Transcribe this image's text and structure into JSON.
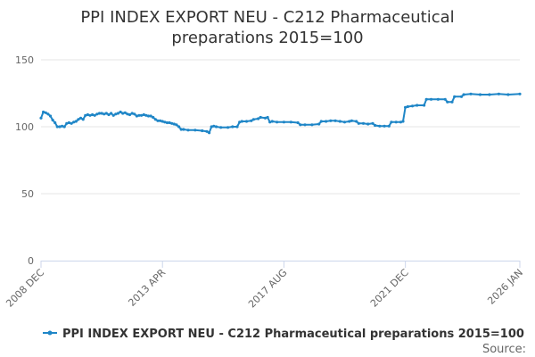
{
  "chart_data": {
    "type": "line",
    "title_lines": [
      "PPI INDEX EXPORT NEU - C212 Pharmaceutical",
      "preparations 2015=100"
    ],
    "xlabel": "",
    "ylabel": "",
    "ylim": [
      0,
      150
    ],
    "y_ticks": [
      0,
      50,
      100,
      150
    ],
    "xlim": [
      "2008-12",
      "2026-01"
    ],
    "x_ticks": [
      {
        "label": "2008 DEC",
        "date": "2008-12"
      },
      {
        "label": "2013 APR",
        "date": "2013-04"
      },
      {
        "label": "2017 AUG",
        "date": "2017-08"
      },
      {
        "label": "2021 DEC",
        "date": "2021-12"
      },
      {
        "label": "2026 JAN",
        "date": "2026-01"
      }
    ],
    "grid": {
      "horizontal": true,
      "vertical": false
    },
    "legend_position": "bottom",
    "credit": "Source:",
    "series": [
      {
        "name": "PPI INDEX EXPORT NEU - C212 Pharmaceutical preparations 2015=100",
        "color": "#1f86c7",
        "points": [
          [
            "2008-12",
            106.5
          ],
          [
            "2009-01",
            111.0
          ],
          [
            "2009-02",
            110.5
          ],
          [
            "2009-03",
            109.5
          ],
          [
            "2009-04",
            108.0
          ],
          [
            "2009-05",
            105.0
          ],
          [
            "2009-06",
            103.0
          ],
          [
            "2009-07",
            100.0
          ],
          [
            "2009-08",
            100.0
          ],
          [
            "2009-09",
            100.5
          ],
          [
            "2009-10",
            100.0
          ],
          [
            "2009-11",
            102.5
          ],
          [
            "2009-12",
            103.0
          ],
          [
            "2010-01",
            102.5
          ],
          [
            "2010-02",
            103.5
          ],
          [
            "2010-03",
            104.0
          ],
          [
            "2010-04",
            105.5
          ],
          [
            "2010-05",
            106.5
          ],
          [
            "2010-06",
            105.5
          ],
          [
            "2010-07",
            108.5
          ],
          [
            "2010-08",
            109.0
          ],
          [
            "2010-09",
            108.5
          ],
          [
            "2010-10",
            109.0
          ],
          [
            "2010-11",
            108.5
          ],
          [
            "2010-12",
            109.5
          ],
          [
            "2011-01",
            110.0
          ],
          [
            "2011-02",
            110.0
          ],
          [
            "2011-03",
            109.5
          ],
          [
            "2011-04",
            110.0
          ],
          [
            "2011-05",
            109.0
          ],
          [
            "2011-06",
            110.0
          ],
          [
            "2011-07",
            108.5
          ],
          [
            "2011-08",
            109.5
          ],
          [
            "2011-09",
            110.0
          ],
          [
            "2011-10",
            111.0
          ],
          [
            "2011-11",
            110.0
          ],
          [
            "2011-12",
            110.5
          ],
          [
            "2012-01",
            109.5
          ],
          [
            "2012-02",
            109.0
          ],
          [
            "2012-03",
            110.0
          ],
          [
            "2012-04",
            109.5
          ],
          [
            "2012-05",
            108.0
          ],
          [
            "2012-06",
            108.5
          ],
          [
            "2012-07",
            108.5
          ],
          [
            "2012-08",
            109.0
          ],
          [
            "2012-09",
            108.5
          ],
          [
            "2012-10",
            108.0
          ],
          [
            "2012-11",
            108.0
          ],
          [
            "2012-12",
            107.0
          ],
          [
            "2013-01",
            105.5
          ],
          [
            "2013-02",
            104.5
          ],
          [
            "2013-03",
            104.5
          ],
          [
            "2013-04",
            104.0
          ],
          [
            "2013-05",
            103.5
          ],
          [
            "2013-06",
            103.0
          ],
          [
            "2013-07",
            103.0
          ],
          [
            "2013-08",
            102.5
          ],
          [
            "2013-09",
            102.0
          ],
          [
            "2013-10",
            101.5
          ],
          [
            "2013-11",
            100.0
          ],
          [
            "2013-12",
            98.0
          ],
          [
            "2014-01",
            98.0
          ],
          [
            "2014-03",
            97.5
          ],
          [
            "2014-06",
            97.5
          ],
          [
            "2014-09",
            97.0
          ],
          [
            "2014-11",
            96.5
          ],
          [
            "2014-12",
            95.5
          ],
          [
            "2015-01",
            100.0
          ],
          [
            "2015-02",
            100.5
          ],
          [
            "2015-03",
            100.0
          ],
          [
            "2015-05",
            99.5
          ],
          [
            "2015-08",
            99.5
          ],
          [
            "2015-10",
            100.0
          ],
          [
            "2015-12",
            100.0
          ],
          [
            "2016-01",
            103.5
          ],
          [
            "2016-02",
            104.0
          ],
          [
            "2016-04",
            104.0
          ],
          [
            "2016-06",
            104.5
          ],
          [
            "2016-07",
            105.5
          ],
          [
            "2016-09",
            106.0
          ],
          [
            "2016-10",
            107.0
          ],
          [
            "2016-12",
            106.5
          ],
          [
            "2017-01",
            107.0
          ],
          [
            "2017-02",
            103.5
          ],
          [
            "2017-03",
            104.0
          ],
          [
            "2017-05",
            103.5
          ],
          [
            "2017-08",
            103.5
          ],
          [
            "2017-11",
            103.5
          ],
          [
            "2018-02",
            103.0
          ],
          [
            "2018-03",
            101.5
          ],
          [
            "2018-05",
            101.5
          ],
          [
            "2018-08",
            101.5
          ],
          [
            "2018-11",
            102.0
          ],
          [
            "2018-12",
            104.0
          ],
          [
            "2019-02",
            104.0
          ],
          [
            "2019-04",
            104.5
          ],
          [
            "2019-06",
            104.5
          ],
          [
            "2019-08",
            104.0
          ],
          [
            "2019-10",
            103.5
          ],
          [
            "2019-12",
            104.0
          ],
          [
            "2020-01",
            104.5
          ],
          [
            "2020-03",
            104.0
          ],
          [
            "2020-04",
            102.5
          ],
          [
            "2020-06",
            102.5
          ],
          [
            "2020-08",
            102.0
          ],
          [
            "2020-10",
            102.5
          ],
          [
            "2020-11",
            101.0
          ],
          [
            "2021-01",
            100.5
          ],
          [
            "2021-03",
            100.5
          ],
          [
            "2021-05",
            100.5
          ],
          [
            "2021-06",
            103.5
          ],
          [
            "2021-08",
            103.5
          ],
          [
            "2021-10",
            103.5
          ],
          [
            "2021-11",
            104.0
          ],
          [
            "2021-12",
            114.5
          ],
          [
            "2022-01",
            115.0
          ],
          [
            "2022-03",
            115.5
          ],
          [
            "2022-05",
            116.0
          ],
          [
            "2022-08",
            116.0
          ],
          [
            "2022-09",
            120.5
          ],
          [
            "2022-11",
            120.5
          ],
          [
            "2023-02",
            120.5
          ],
          [
            "2023-05",
            120.5
          ],
          [
            "2023-06",
            118.5
          ],
          [
            "2023-08",
            118.5
          ],
          [
            "2023-09",
            122.5
          ],
          [
            "2023-12",
            122.5
          ],
          [
            "2024-01",
            124.0
          ],
          [
            "2024-04",
            124.5
          ],
          [
            "2024-08",
            124.0
          ],
          [
            "2024-12",
            124.0
          ],
          [
            "2025-04",
            124.5
          ],
          [
            "2025-08",
            124.0
          ],
          [
            "2026-01",
            124.5
          ]
        ]
      }
    ]
  }
}
